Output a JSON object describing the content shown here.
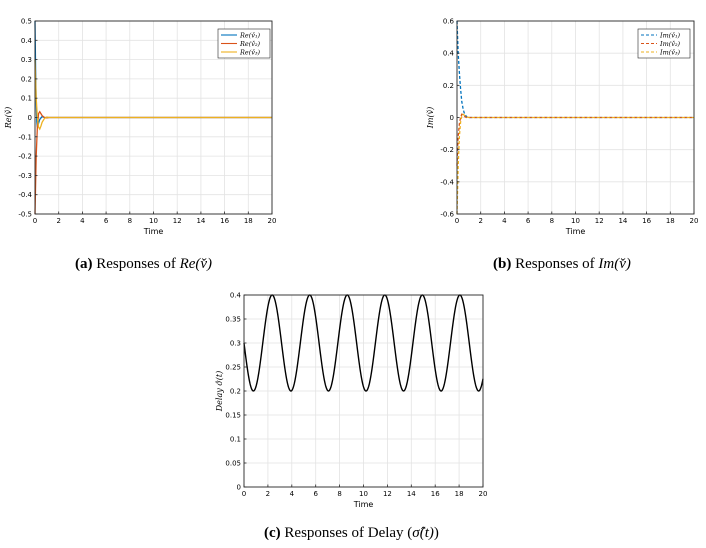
{
  "captions": {
    "a": {
      "prefix": "(a)",
      "text": "Responses of ",
      "math": "Re(v̌)"
    },
    "b": {
      "prefix": "(b)",
      "text": "Responses of ",
      "math": "Im(v̌)"
    },
    "c": {
      "prefix": "(c)",
      "text": "Responses of Delay (",
      "math": "σ̂(t)",
      "suffix": ")"
    }
  },
  "chart_data": [
    {
      "id": "a",
      "type": "line",
      "xlabel": "Time",
      "ylabel": "Re(v̌)",
      "xlim": [
        0,
        20
      ],
      "ylim": [
        -0.5,
        0.5
      ],
      "xticks": [
        0,
        2,
        4,
        6,
        8,
        10,
        12,
        14,
        16,
        18,
        20
      ],
      "yticks": [
        -0.5,
        -0.4,
        -0.3,
        -0.2,
        -0.1,
        0,
        0.1,
        0.2,
        0.3,
        0.4,
        0.5
      ],
      "xtick_labels": [
        "0",
        "2",
        "4",
        "6",
        "8",
        "10",
        "12",
        "14",
        "16",
        "18",
        "20"
      ],
      "ytick_labels": [
        "-0.5",
        "-0.4",
        "-0.3",
        "-0.2",
        "-0.1",
        "0",
        "0.1",
        "0.2",
        "0.3",
        "0.4",
        "0.5"
      ],
      "grid": true,
      "legend": "top-right",
      "series": [
        {
          "name": "Re(v̌₁)",
          "color": "#0072bd",
          "dash": "solid",
          "x": [
            0,
            0.02,
            0.05,
            0.1,
            0.15,
            0.2,
            0.3,
            0.4,
            0.6,
            0.8,
            1.0,
            2,
            20
          ],
          "y": [
            0.5,
            0.4,
            0.25,
            0.08,
            -0.02,
            -0.05,
            -0.03,
            -0.01,
            0.005,
            0.0,
            0.0,
            0,
            0
          ]
        },
        {
          "name": "Re(v̌₂)",
          "color": "#d95319",
          "dash": "solid",
          "x": [
            0,
            0.05,
            0.1,
            0.2,
            0.3,
            0.4,
            0.5,
            0.6,
            0.8,
            1.0,
            1.2,
            2,
            20
          ],
          "y": [
            -0.5,
            -0.35,
            -0.2,
            -0.05,
            0.02,
            0.03,
            0.02,
            0.01,
            0.0,
            -0.002,
            0,
            0,
            0
          ]
        },
        {
          "name": "Re(v̌₃)",
          "color": "#edb120",
          "dash": "solid",
          "x": [
            0,
            0.05,
            0.1,
            0.2,
            0.3,
            0.4,
            0.5,
            0.6,
            0.8,
            1.0,
            1.2,
            2,
            20
          ],
          "y": [
            0.3,
            0.2,
            0.1,
            0.0,
            -0.05,
            -0.06,
            -0.045,
            -0.025,
            -0.005,
            0.002,
            0,
            0,
            0
          ]
        }
      ]
    },
    {
      "id": "b",
      "type": "line",
      "xlabel": "Time",
      "ylabel": "Im(v̌)",
      "xlim": [
        0,
        20
      ],
      "ylim": [
        -0.6,
        0.6
      ],
      "xticks": [
        0,
        2,
        4,
        6,
        8,
        10,
        12,
        14,
        16,
        18,
        20
      ],
      "yticks": [
        -0.6,
        -0.4,
        -0.2,
        0,
        0.2,
        0.4,
        0.6
      ],
      "xtick_labels": [
        "0",
        "2",
        "4",
        "6",
        "8",
        "10",
        "12",
        "14",
        "16",
        "18",
        "20"
      ],
      "ytick_labels": [
        "-0.6",
        "-0.4",
        "-0.2",
        "0",
        "0.2",
        "0.4",
        "0.6"
      ],
      "grid": true,
      "legend": "top-right",
      "series": [
        {
          "name": "Im(v̌₁)",
          "color": "#0072bd",
          "dash": "dashed",
          "x": [
            0,
            0.05,
            0.1,
            0.2,
            0.3,
            0.4,
            0.5,
            0.6,
            0.8,
            1.0,
            1.2,
            2,
            20
          ],
          "y": [
            0.6,
            0.5,
            0.4,
            0.28,
            0.18,
            0.1,
            0.06,
            0.03,
            0.005,
            0.0,
            0,
            0,
            0
          ]
        },
        {
          "name": "Im(v̌₂)",
          "color": "#d95319",
          "dash": "dashed",
          "x": [
            0,
            0.05,
            0.1,
            0.2,
            0.3,
            0.4,
            0.5,
            0.6,
            0.8,
            1.0,
            1.2,
            2,
            20
          ],
          "y": [
            -0.3,
            -0.2,
            -0.12,
            -0.04,
            0.0,
            0.02,
            0.015,
            0.008,
            0.0,
            0,
            0,
            0,
            0
          ]
        },
        {
          "name": "Im(v̌₃)",
          "color": "#edb120",
          "dash": "dashed",
          "x": [
            0,
            0.05,
            0.1,
            0.2,
            0.3,
            0.4,
            0.5,
            0.6,
            0.8,
            1.0,
            1.2,
            2,
            20
          ],
          "y": [
            -0.6,
            -0.45,
            -0.3,
            -0.12,
            -0.03,
            0.01,
            0.02,
            0.015,
            0.005,
            0,
            0,
            0,
            0
          ]
        }
      ]
    },
    {
      "id": "c",
      "type": "line",
      "xlabel": "Time",
      "ylabel": "Delay σ̂(t)",
      "xlim": [
        0,
        20
      ],
      "ylim": [
        0,
        0.4
      ],
      "xticks": [
        0,
        2,
        4,
        6,
        8,
        10,
        12,
        14,
        16,
        18,
        20
      ],
      "yticks": [
        0,
        0.05,
        0.1,
        0.15,
        0.2,
        0.25,
        0.3,
        0.35,
        0.4
      ],
      "xtick_labels": [
        "0",
        "2",
        "4",
        "6",
        "8",
        "10",
        "12",
        "14",
        "16",
        "18",
        "20"
      ],
      "ytick_labels": [
        "0",
        "0.05",
        "0.1",
        "0.15",
        "0.2",
        "0.25",
        "0.3",
        "0.35",
        "0.4"
      ],
      "grid": true,
      "series": [
        {
          "color": "#000000",
          "dash": "solid",
          "function": {
            "kind": "sinusoid",
            "offset": 0.3,
            "amplitude": 0.1,
            "period": 3.14159,
            "phase_shift": 1.5708
          }
        }
      ]
    }
  ]
}
